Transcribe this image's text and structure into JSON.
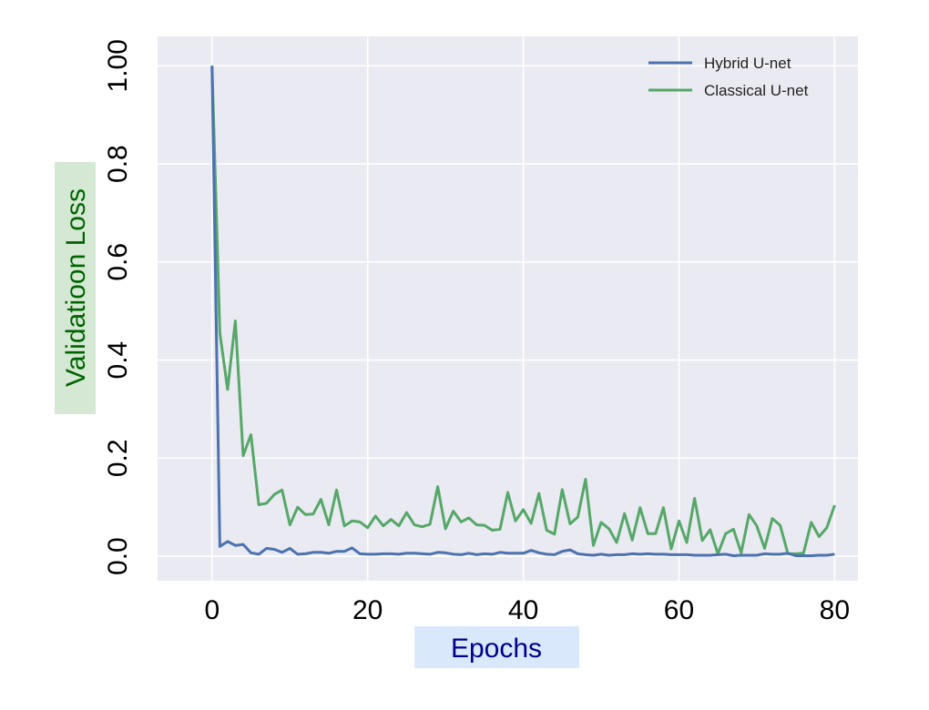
{
  "chart_data": {
    "type": "line",
    "xlabel": "Epochs",
    "ylabel": "Validatioon Loss",
    "xlim": [
      -7,
      83
    ],
    "ylim": [
      -0.05,
      1.06
    ],
    "xticks": [
      0,
      20,
      40,
      60,
      80
    ],
    "yticks": [
      0.0,
      0.2,
      0.4,
      0.6,
      0.8,
      1.0
    ],
    "xtick_labels": [
      "0",
      "20",
      "40",
      "60",
      "80"
    ],
    "ytick_labels": [
      "0.0",
      "0.2",
      "0.4",
      "0.6",
      "0.8",
      "1.00"
    ],
    "grid": true,
    "legend_position": "top-right",
    "colors": {
      "background": "#eaeaf2",
      "grid": "#ffffff",
      "xlabel_bg": "#dae8fc",
      "xlabel_fg": "#00008b",
      "ylabel_bg": "#d5e8d4",
      "ylabel_fg": "#006400"
    },
    "series": [
      {
        "name": "Hybrid U-net",
        "color": "#4c72b0",
        "x": [
          0,
          1,
          2,
          3,
          4,
          5,
          6,
          7,
          8,
          9,
          10,
          11,
          12,
          13,
          14,
          15,
          16,
          17,
          18,
          19,
          20,
          21,
          22,
          23,
          24,
          25,
          26,
          27,
          28,
          29,
          30,
          31,
          32,
          33,
          34,
          35,
          36,
          37,
          38,
          39,
          40,
          41,
          42,
          43,
          44,
          45,
          46,
          47,
          48,
          49,
          50,
          51,
          52,
          53,
          54,
          55,
          56,
          57,
          58,
          59,
          60,
          61,
          62,
          63,
          64,
          65,
          66,
          67,
          68,
          69,
          70,
          71,
          72,
          73,
          74,
          75,
          76,
          77,
          78,
          79,
          80
        ],
        "values": [
          1.0,
          0.02,
          0.03,
          0.022,
          0.024,
          0.007,
          0.004,
          0.016,
          0.014,
          0.008,
          0.016,
          0.004,
          0.005,
          0.008,
          0.008,
          0.006,
          0.01,
          0.01,
          0.017,
          0.005,
          0.004,
          0.004,
          0.005,
          0.005,
          0.004,
          0.006,
          0.006,
          0.005,
          0.004,
          0.008,
          0.007,
          0.004,
          0.003,
          0.006,
          0.003,
          0.005,
          0.004,
          0.008,
          0.006,
          0.006,
          0.006,
          0.012,
          0.007,
          0.004,
          0.003,
          0.01,
          0.013,
          0.005,
          0.003,
          0.002,
          0.004,
          0.002,
          0.003,
          0.003,
          0.005,
          0.004,
          0.005,
          0.004,
          0.004,
          0.003,
          0.003,
          0.003,
          0.002,
          0.002,
          0.002,
          0.003,
          0.004,
          0.001,
          0.002,
          0.002,
          0.002,
          0.005,
          0.004,
          0.004,
          0.006,
          0.001,
          0.001,
          0.001,
          0.002,
          0.002,
          0.004
        ]
      },
      {
        "name": "Classical U-net",
        "color": "#55a868",
        "x": [
          0,
          1,
          2,
          3,
          4,
          5,
          6,
          7,
          8,
          9,
          10,
          11,
          12,
          13,
          14,
          15,
          16,
          17,
          18,
          19,
          20,
          21,
          22,
          23,
          24,
          25,
          26,
          27,
          28,
          29,
          30,
          31,
          32,
          33,
          34,
          35,
          36,
          37,
          38,
          39,
          40,
          41,
          42,
          43,
          44,
          45,
          46,
          47,
          48,
          49,
          50,
          51,
          52,
          53,
          54,
          55,
          56,
          57,
          58,
          59,
          60,
          61,
          62,
          63,
          64,
          65,
          66,
          67,
          68,
          69,
          70,
          71,
          72,
          73,
          74,
          75,
          76,
          77,
          78,
          79,
          80
        ],
        "values": [
          1.0,
          0.455,
          0.34,
          0.48,
          0.205,
          0.248,
          0.105,
          0.108,
          0.126,
          0.135,
          0.064,
          0.1,
          0.085,
          0.086,
          0.116,
          0.064,
          0.135,
          0.062,
          0.072,
          0.07,
          0.058,
          0.082,
          0.062,
          0.075,
          0.062,
          0.089,
          0.064,
          0.06,
          0.065,
          0.142,
          0.056,
          0.092,
          0.07,
          0.078,
          0.064,
          0.063,
          0.053,
          0.055,
          0.13,
          0.072,
          0.095,
          0.067,
          0.128,
          0.053,
          0.045,
          0.136,
          0.066,
          0.08,
          0.157,
          0.022,
          0.069,
          0.056,
          0.028,
          0.087,
          0.033,
          0.099,
          0.046,
          0.046,
          0.099,
          0.015,
          0.072,
          0.028,
          0.118,
          0.032,
          0.054,
          0.005,
          0.046,
          0.055,
          0.007,
          0.085,
          0.062,
          0.016,
          0.077,
          0.063,
          0.005,
          0.005,
          0.006,
          0.069,
          0.04,
          0.058,
          0.104
        ]
      }
    ]
  }
}
